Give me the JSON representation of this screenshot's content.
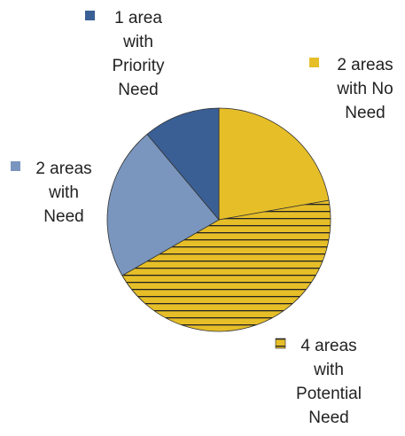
{
  "chart_data": {
    "type": "pie",
    "slices": [
      {
        "label": "2 areas with No Need",
        "value": 2,
        "color": "#E6BE28",
        "pattern": "solid"
      },
      {
        "label": "4 areas with Potential Need",
        "value": 4,
        "color": "#E6BE28",
        "pattern": "horizontal-lines"
      },
      {
        "label": "2 areas with Need",
        "value": 2,
        "color": "#7A96BE",
        "pattern": "solid"
      },
      {
        "label": "1 area with Priority Need",
        "value": 1,
        "color": "#3A5F95",
        "pattern": "solid"
      }
    ],
    "legend": [
      {
        "lines": [
          "1 area",
          "with",
          "Priority",
          "Need"
        ],
        "color": "#3A5F95",
        "pattern": "solid"
      },
      {
        "lines": [
          "2 areas",
          "with No",
          "Need"
        ],
        "color": "#E6BE28",
        "pattern": "solid"
      },
      {
        "lines": [
          "2 areas",
          "with",
          "Need"
        ],
        "color": "#7A96BE",
        "pattern": "solid"
      },
      {
        "lines": [
          "4 areas",
          "with",
          "Potential",
          "Need"
        ],
        "color": "#E6BE28",
        "pattern": "horizontal-lines"
      }
    ],
    "start": "12 o'clock",
    "direction": "clockwise",
    "line_color": "#333333",
    "label_color": "#222222"
  }
}
